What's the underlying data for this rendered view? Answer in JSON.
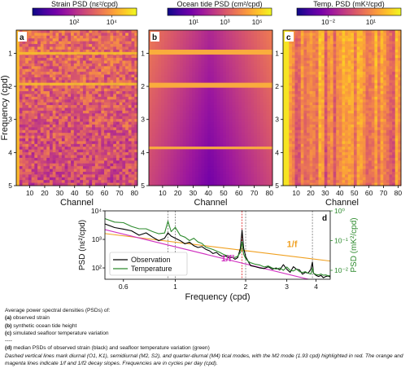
{
  "colors": {
    "plasma": [
      "#0d0887",
      "#46039f",
      "#7201a8",
      "#9c179e",
      "#bd3786",
      "#d8576b",
      "#ed7953",
      "#fb9f3a",
      "#fdca26",
      "#f0f921"
    ],
    "observation": "#000000",
    "temperature": "#2e8b2e",
    "one_over_f": "#f0a020",
    "one_over_f2": "#d030c0",
    "m2_line": "#e02020",
    "tidal_lines": "#777777"
  },
  "chart_data": [
    {
      "id": "a",
      "type": "heatmap",
      "panel_label": "a",
      "colorbar_label": "Strain PSD (nε²/cpd)",
      "colorbar_ticks": [
        "10²",
        "10⁴"
      ],
      "colorbar_tick_fracs": [
        0.4,
        0.76
      ],
      "xlabel": "Channel",
      "ylabel": "Frequency (cpd)",
      "xlim": [
        1,
        82
      ],
      "ylim": [
        5,
        0.3
      ],
      "xticks": [
        10,
        20,
        30,
        40,
        50,
        60,
        70,
        80
      ],
      "yticks": [
        1,
        2,
        3,
        4,
        5
      ],
      "bright_rows_cpd": [
        1.0,
        1.93
      ]
    },
    {
      "id": "b",
      "type": "heatmap",
      "panel_label": "b",
      "colorbar_label": "Ocean tide PSD (cm²/cpd)",
      "colorbar_ticks": [
        "10¹",
        "10³",
        "10⁵"
      ],
      "colorbar_tick_fracs": [
        0.25,
        0.55,
        0.86
      ],
      "xlabel": "Channel",
      "ylabel": "",
      "xlim": [
        1,
        82
      ],
      "ylim": [
        5,
        0.3
      ],
      "xticks": [
        10,
        20,
        30,
        40,
        50,
        60,
        70,
        80
      ],
      "yticks": [
        1,
        2,
        3,
        4,
        5
      ],
      "bright_rows_cpd": [
        0.93,
        1.0,
        1.93,
        2.0,
        3.86
      ]
    },
    {
      "id": "c",
      "type": "heatmap",
      "panel_label": "c",
      "colorbar_label": "Temp. PSD (mK²/cpd)",
      "colorbar_ticks": [
        "10⁻²",
        "10¹"
      ],
      "colorbar_tick_fracs": [
        0.3,
        0.71
      ],
      "xlabel": "Channel",
      "ylabel": "",
      "xlim": [
        1,
        82
      ],
      "ylim": [
        5,
        0.3
      ],
      "xticks": [
        10,
        20,
        30,
        40,
        50,
        60,
        70,
        80
      ],
      "yticks": [
        1,
        2,
        3,
        4,
        5
      ],
      "bright_columns": [
        1,
        2,
        3
      ]
    },
    {
      "id": "d",
      "type": "line",
      "panel_label": "d",
      "xlabel": "Frequency (cpd)",
      "ylabel": "PSD (nε²/cpd)",
      "ylabel_right": "PSD (mK²/cpd)",
      "xscale": "log",
      "yscale": "log",
      "xlim": [
        0.5,
        4.6
      ],
      "ylim": [
        40,
        10000
      ],
      "ylim_right": [
        0.005,
        1.0
      ],
      "xticks": [
        0.6,
        1,
        2,
        3,
        4
      ],
      "xtick_labels": [
        "0.6",
        "1",
        "2",
        "3",
        "4"
      ],
      "yticks": [
        100,
        1000,
        10000
      ],
      "ytick_labels": [
        "10²",
        "10³",
        "10⁴"
      ],
      "yticks_right": [
        0.01,
        0.1,
        1.0
      ],
      "ytick_labels_right": [
        "10⁻²",
        "10⁻¹",
        "10⁰"
      ],
      "tidal_lines": [
        0.93,
        1.0,
        1.93,
        2.0,
        3.86
      ],
      "m2_frequency": 1.93,
      "legend": {
        "position": "bottom-left",
        "items": [
          "Observation",
          "Temperature"
        ]
      },
      "annotations": [
        {
          "text": "1/f",
          "x": 3.0,
          "y": 530,
          "color": "#f0a020"
        },
        {
          "text": "1/f²",
          "x": 1.57,
          "y": 170,
          "color": "#d030c0"
        }
      ],
      "slope_lines": [
        {
          "name": "1/f",
          "x": [
            0.5,
            4.6
          ],
          "y": [
            1600,
            174
          ]
        },
        {
          "name": "1/f2",
          "x": [
            0.5,
            4.6
          ],
          "y": [
            2200,
            26
          ]
        }
      ],
      "series": [
        {
          "name": "Observation",
          "axis": "left",
          "x": [
            0.5,
            0.55,
            0.6,
            0.65,
            0.7,
            0.75,
            0.8,
            0.85,
            0.9,
            0.93,
            0.96,
            1.0,
            1.05,
            1.1,
            1.15,
            1.2,
            1.25,
            1.3,
            1.35,
            1.4,
            1.45,
            1.5,
            1.55,
            1.6,
            1.65,
            1.7,
            1.75,
            1.8,
            1.85,
            1.9,
            1.93,
            1.96,
            2.0,
            2.05,
            2.1,
            2.2,
            2.3,
            2.4,
            2.5,
            2.6,
            2.7,
            2.8,
            2.9,
            3.0,
            3.1,
            3.2,
            3.3,
            3.4,
            3.5,
            3.6,
            3.7,
            3.8,
            3.86,
            3.9,
            4.0,
            4.1,
            4.2,
            4.3,
            4.4,
            4.5,
            4.6
          ],
          "y": [
            3500,
            2600,
            2300,
            2000,
            1400,
            1700,
            1200,
            900,
            1100,
            1700,
            1300,
            1100,
            900,
            700,
            800,
            600,
            520,
            560,
            450,
            400,
            320,
            350,
            280,
            250,
            260,
            220,
            240,
            200,
            230,
            500,
            2100,
            500,
            250,
            170,
            120,
            110,
            100,
            95,
            110,
            90,
            100,
            85,
            130,
            90,
            70,
            110,
            90,
            85,
            60,
            70,
            65,
            90,
            160,
            65,
            55,
            50,
            55,
            45,
            50,
            52,
            48
          ]
        },
        {
          "name": "Temperature",
          "axis": "right",
          "x": [
            0.5,
            0.55,
            0.6,
            0.65,
            0.7,
            0.75,
            0.8,
            0.85,
            0.9,
            0.93,
            0.96,
            1.0,
            1.05,
            1.1,
            1.15,
            1.2,
            1.25,
            1.3,
            1.35,
            1.4,
            1.45,
            1.5,
            1.55,
            1.6,
            1.65,
            1.7,
            1.75,
            1.8,
            1.85,
            1.9,
            1.93,
            1.96,
            2.0,
            2.05,
            2.1,
            2.2,
            2.3,
            2.4,
            2.5,
            2.6,
            2.7,
            2.8,
            2.9,
            3.0,
            3.1,
            3.2,
            3.3,
            3.4,
            3.5,
            3.6,
            3.7,
            3.8,
            3.86,
            3.9,
            4.0,
            4.1,
            4.2,
            4.3,
            4.4,
            4.5,
            4.6
          ],
          "y": [
            0.55,
            0.42,
            0.4,
            0.3,
            0.25,
            0.25,
            0.2,
            0.17,
            0.18,
            0.45,
            0.2,
            0.28,
            0.15,
            0.13,
            0.1,
            0.12,
            0.09,
            0.08,
            0.06,
            0.055,
            0.05,
            0.045,
            0.04,
            0.035,
            0.032,
            0.03,
            0.028,
            0.027,
            0.03,
            0.04,
            0.09,
            0.035,
            0.025,
            0.02,
            0.018,
            0.016,
            0.015,
            0.013,
            0.014,
            0.012,
            0.011,
            0.012,
            0.01,
            0.013,
            0.01,
            0.0095,
            0.011,
            0.009,
            0.0085,
            0.009,
            0.008,
            0.0075,
            0.012,
            0.008,
            0.0072,
            0.007,
            0.0075,
            0.0068,
            0.007,
            0.0066,
            0.0065
          ]
        }
      ]
    }
  ],
  "caption": {
    "intro": "Average power spectral densities (PSDs) of:",
    "item_a_label": "(a)",
    "item_a_text": " observed strain",
    "item_b_label": "(b)",
    "item_b_text": " synthetic ocean tide height",
    "item_c_label": "(c)",
    "item_c_text": " simulated seafloor temperature variation",
    "separator": "----",
    "item_d_label": "(d)",
    "item_d_text": " median PSDs of observed strain (black) and seafloor temperature variation (green)",
    "note": "Dashed vertical lines mark diurnal (O1, K1), semidiurnal (M2, S2), and quarter-diurnal (M4) tical modes, with the M2 mode (1.93 cpd) highlighted in red. The orange and magenta lines indicate 1/f and 1/f2 decay slopes. Frequencies are in cycles per day (cpd)."
  }
}
